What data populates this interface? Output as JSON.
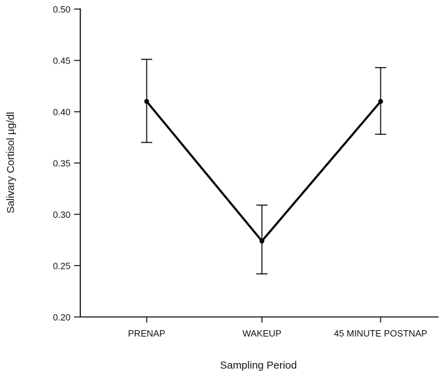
{
  "chart_data": {
    "type": "line",
    "xlabel": "Sampling Period",
    "ylabel": "Salivary Cortisol µg/dl",
    "ylim": [
      0.2,
      0.5
    ],
    "yticks": [
      "0.20",
      "0.25",
      "0.30",
      "0.35",
      "0.40",
      "0.45",
      "0.50"
    ],
    "categories": [
      "PRENAP",
      "WAKEUP",
      "45 MINUTE POSTNAP"
    ],
    "series": [
      {
        "values": [
          0.41,
          0.274,
          0.41
        ],
        "error_low": [
          0.37,
          0.242,
          0.378
        ],
        "error_high": [
          0.451,
          0.309,
          0.443
        ]
      }
    ],
    "grid": false,
    "legend": "none",
    "color": "#000000"
  }
}
